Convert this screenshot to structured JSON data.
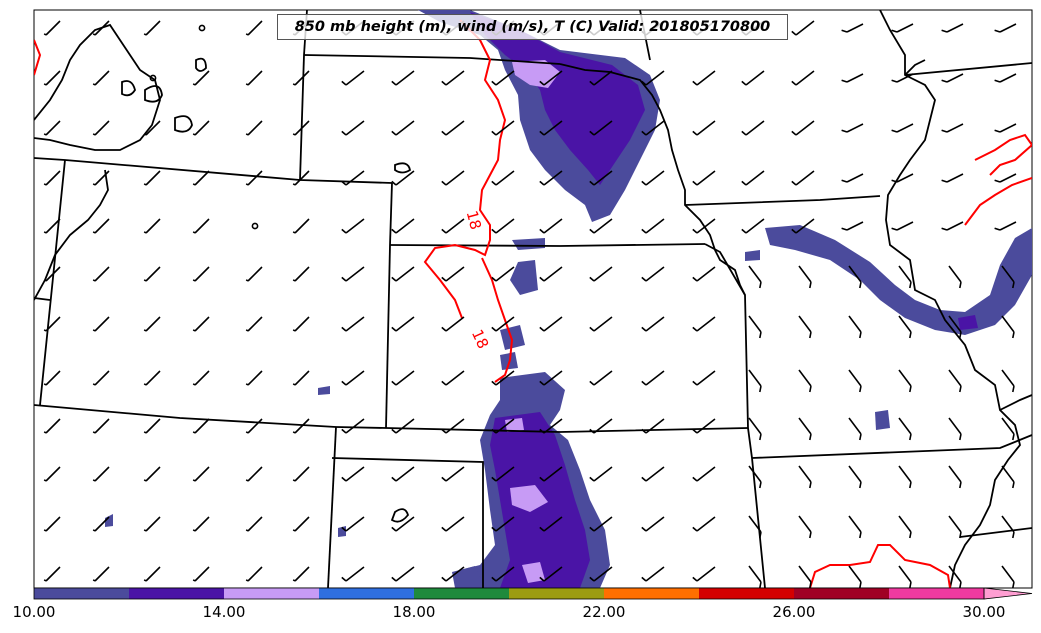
{
  "title": "850 mb height (m), wind (m/s), T (C) Valid: 201805170800",
  "contour_labels": [
    "18",
    "18"
  ],
  "colorbar": {
    "ticks": [
      "10.00",
      "14.00",
      "18.00",
      "22.00",
      "26.00",
      "30.00"
    ],
    "min": 10,
    "max": 30,
    "bins": [
      {
        "from": 10,
        "to": 12,
        "color": "#4b4b9c"
      },
      {
        "from": 12,
        "to": 14,
        "color": "#4a14a6"
      },
      {
        "from": 14,
        "to": 16,
        "color": "#c79bf5"
      },
      {
        "from": 16,
        "to": 18,
        "color": "#2f6fe0"
      },
      {
        "from": 18,
        "to": 20,
        "color": "#1f8a3c"
      },
      {
        "from": 20,
        "to": 22,
        "color": "#9c9c12"
      },
      {
        "from": 22,
        "to": 24,
        "color": "#ff6f00"
      },
      {
        "from": 24,
        "to": 26,
        "color": "#d40000"
      },
      {
        "from": 26,
        "to": 28,
        "color": "#a00024"
      },
      {
        "from": 28,
        "to": 30,
        "color": "#ef3aa0"
      }
    ],
    "extend_color": "#ff9ed2"
  },
  "colors": {
    "temperature_contour": "#ff0000",
    "boundaries": "#000000",
    "wind_barbs": "#000000"
  }
}
